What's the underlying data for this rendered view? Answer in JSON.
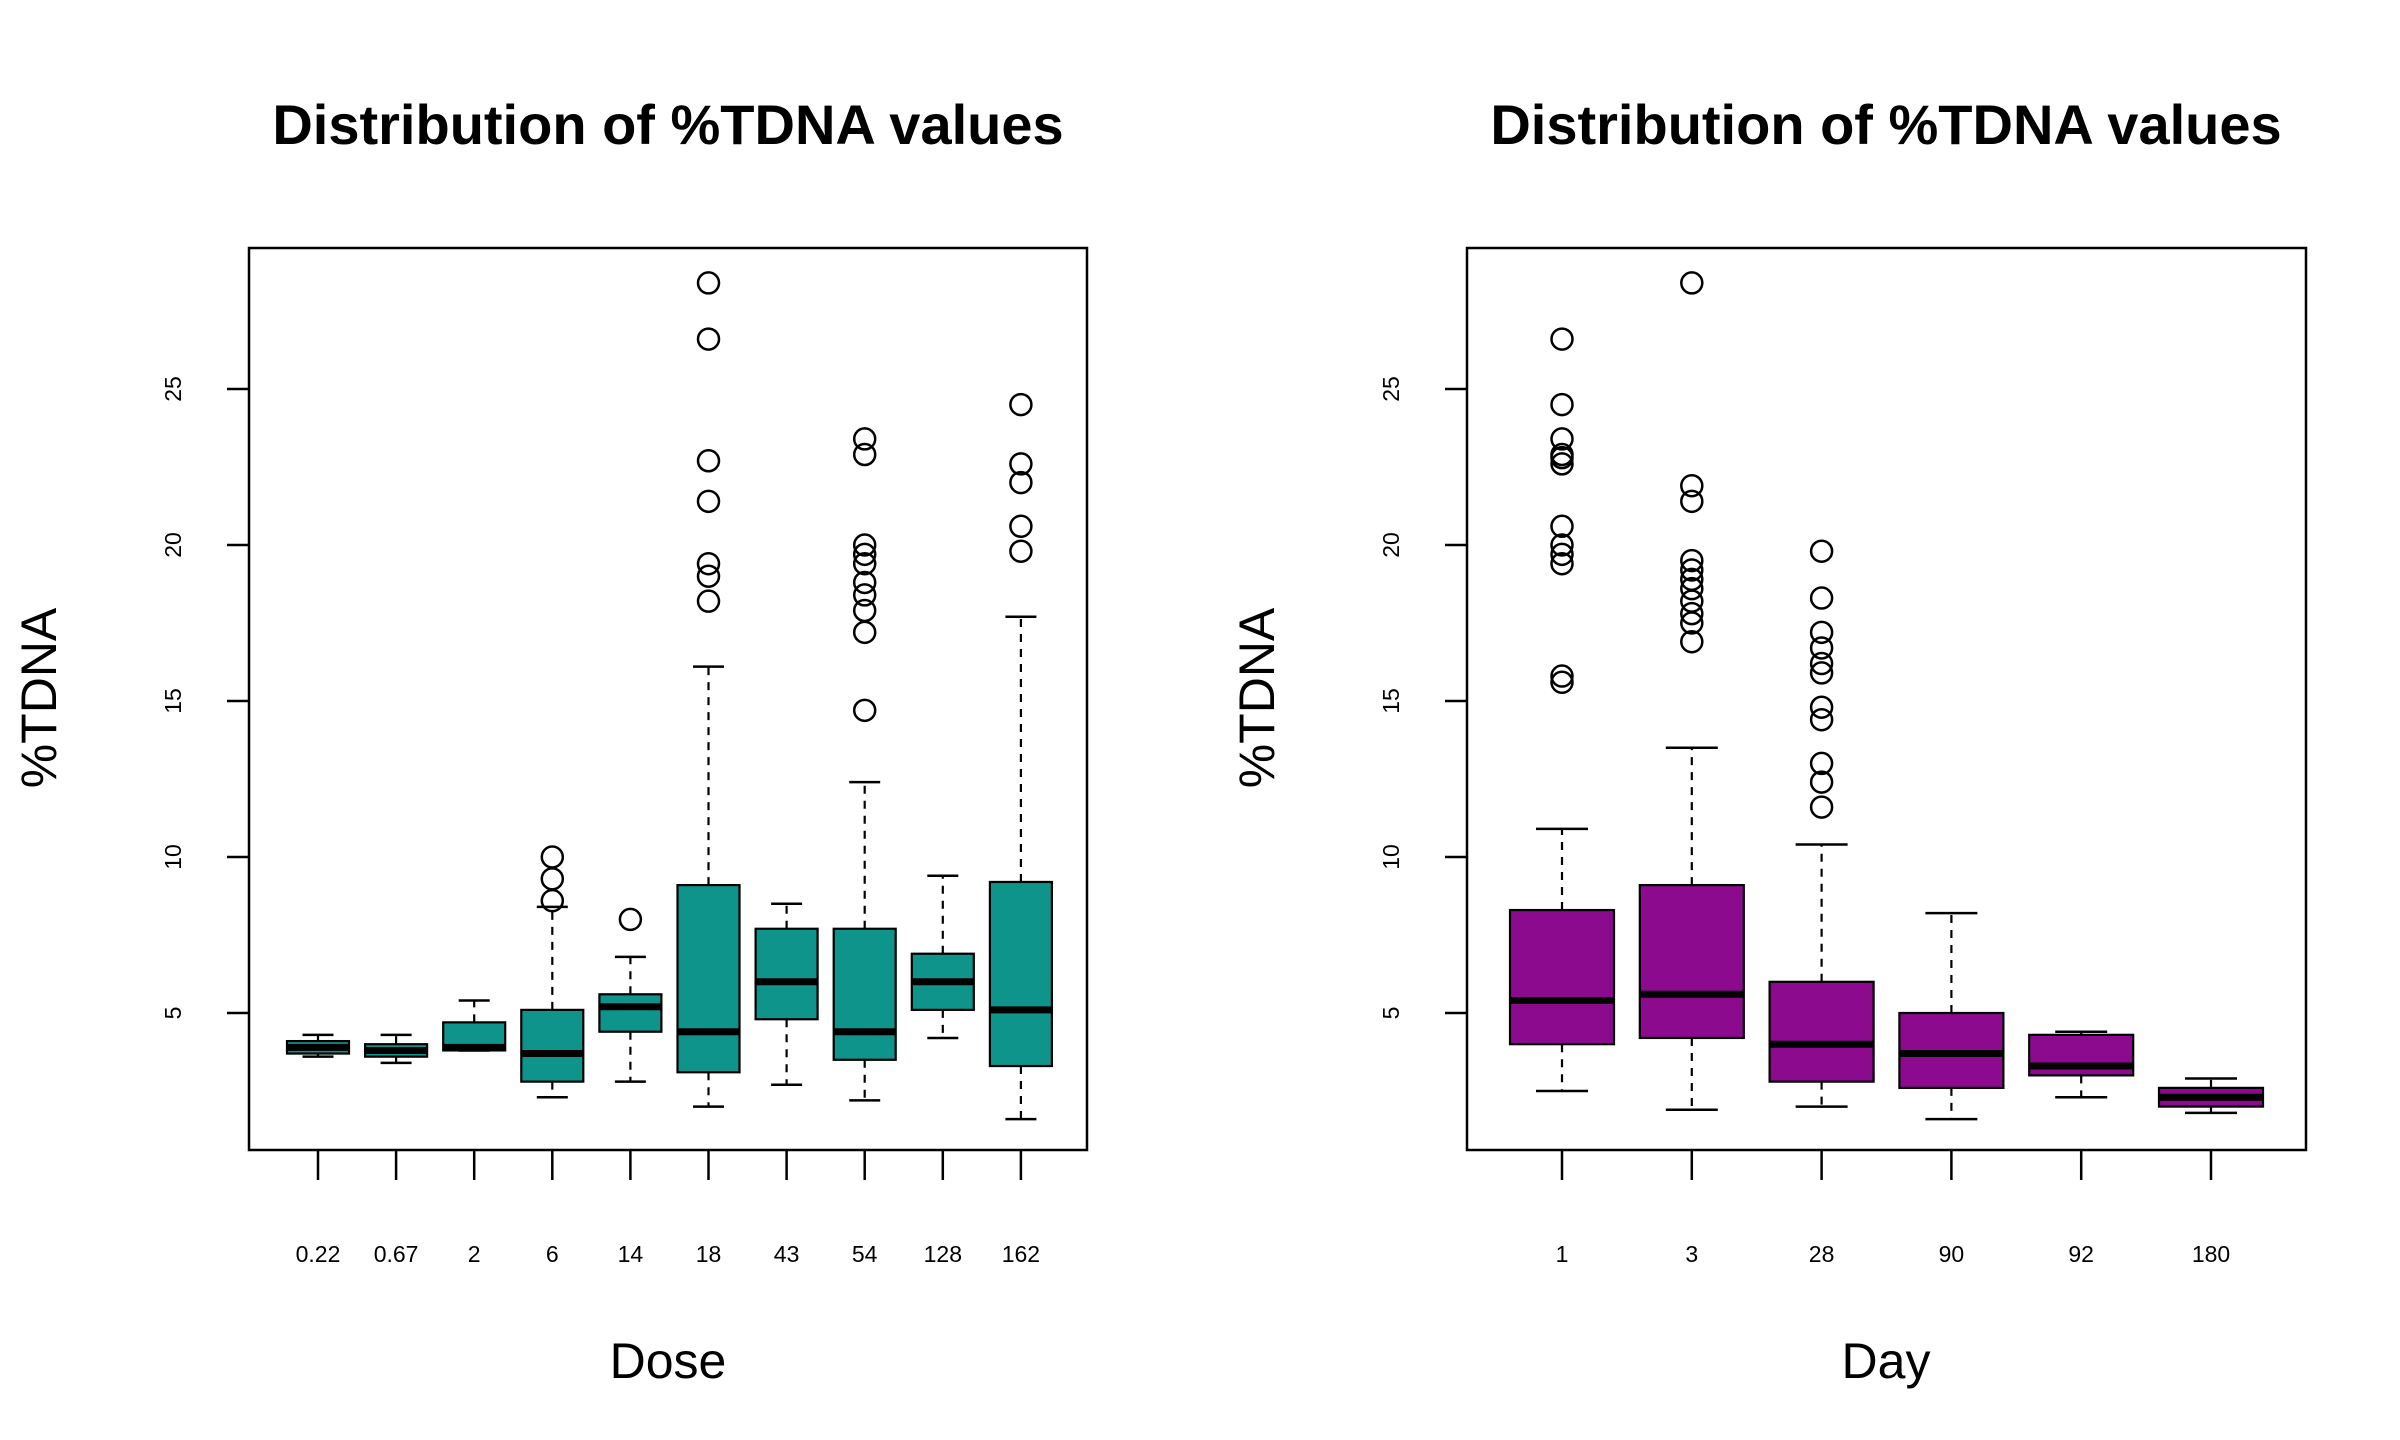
{
  "chart_data": [
    {
      "type": "box",
      "title": "Distribution of %TDNA values",
      "xlabel": "Dose",
      "ylabel": "%TDNA",
      "ylim": [
        1,
        30
      ],
      "y_ticks": [
        "5",
        "10",
        "15",
        "20",
        "25"
      ],
      "box_color": "#0E948B",
      "grid": false,
      "legend": "none",
      "categories": [
        "0.22",
        "0.67",
        "2",
        "6",
        "14",
        "18",
        "43",
        "54",
        "128",
        "162"
      ],
      "boxes": [
        {
          "whisker_low": 3.6,
          "q1": 3.7,
          "median": 3.9,
          "q3": 4.1,
          "whisker_high": 4.3,
          "outliers": []
        },
        {
          "whisker_low": 3.4,
          "q1": 3.6,
          "median": 3.8,
          "q3": 4.0,
          "whisker_high": 4.3,
          "outliers": []
        },
        {
          "whisker_low": 3.8,
          "q1": 3.8,
          "median": 3.9,
          "q3": 4.7,
          "whisker_high": 5.4,
          "outliers": []
        },
        {
          "whisker_low": 2.3,
          "q1": 2.8,
          "median": 3.7,
          "q3": 5.1,
          "whisker_high": 8.4,
          "outliers": [
            8.6,
            9.3,
            10.0
          ]
        },
        {
          "whisker_low": 2.8,
          "q1": 4.4,
          "median": 5.2,
          "q3": 5.6,
          "whisker_high": 6.8,
          "outliers": [
            8.0
          ]
        },
        {
          "whisker_low": 2.0,
          "q1": 3.1,
          "median": 4.4,
          "q3": 9.1,
          "whisker_high": 16.1,
          "outliers": [
            18.2,
            19.0,
            19.4,
            21.4,
            22.7,
            26.6,
            28.4
          ]
        },
        {
          "whisker_low": 2.7,
          "q1": 4.8,
          "median": 6.0,
          "q3": 7.7,
          "whisker_high": 8.5,
          "outliers": []
        },
        {
          "whisker_low": 2.2,
          "q1": 3.5,
          "median": 4.4,
          "q3": 7.7,
          "whisker_high": 12.4,
          "outliers": [
            14.7,
            17.2,
            17.9,
            18.4,
            18.8,
            19.4,
            19.7,
            20.0,
            22.9,
            23.4
          ]
        },
        {
          "whisker_low": 4.2,
          "q1": 5.1,
          "median": 6.0,
          "q3": 6.9,
          "whisker_high": 9.4,
          "outliers": []
        },
        {
          "whisker_low": 1.6,
          "q1": 3.3,
          "median": 5.1,
          "q3": 9.2,
          "whisker_high": 17.7,
          "outliers": [
            19.8,
            20.6,
            22.0,
            22.6,
            24.5
          ]
        }
      ]
    },
    {
      "type": "box",
      "title": "Distribution of %TDNA values",
      "xlabel": "Day",
      "ylabel": "%TDNA",
      "ylim": [
        1,
        30
      ],
      "y_ticks": [
        "5",
        "10",
        "15",
        "20",
        "25"
      ],
      "box_color": "#8B0A8E",
      "grid": false,
      "legend": "none",
      "categories": [
        "1",
        "3",
        "28",
        "90",
        "92",
        "180"
      ],
      "boxes": [
        {
          "whisker_low": 2.5,
          "q1": 4.0,
          "median": 5.4,
          "q3": 8.3,
          "whisker_high": 10.9,
          "outliers": [
            15.6,
            15.8,
            19.4,
            19.7,
            20.0,
            20.6,
            22.6,
            22.8,
            22.9,
            23.4,
            24.5,
            26.6
          ]
        },
        {
          "whisker_low": 1.9,
          "q1": 4.2,
          "median": 5.6,
          "q3": 9.1,
          "whisker_high": 13.5,
          "outliers": [
            16.9,
            17.5,
            17.8,
            18.2,
            18.6,
            18.9,
            19.2,
            19.5,
            21.4,
            21.9,
            28.4
          ]
        },
        {
          "whisker_low": 2.0,
          "q1": 2.8,
          "median": 4.0,
          "q3": 6.0,
          "whisker_high": 10.4,
          "outliers": [
            11.6,
            12.4,
            13.0,
            14.4,
            14.8,
            15.9,
            16.2,
            16.7,
            17.2,
            18.3,
            19.8
          ]
        },
        {
          "whisker_low": 1.6,
          "q1": 2.6,
          "median": 3.7,
          "q3": 5.0,
          "whisker_high": 8.2,
          "outliers": []
        },
        {
          "whisker_low": 2.3,
          "q1": 3.0,
          "median": 3.3,
          "q3": 4.3,
          "whisker_high": 4.4,
          "outliers": []
        },
        {
          "whisker_low": 1.8,
          "q1": 2.0,
          "median": 2.3,
          "q3": 2.6,
          "whisker_high": 2.9,
          "outliers": []
        }
      ]
    }
  ]
}
